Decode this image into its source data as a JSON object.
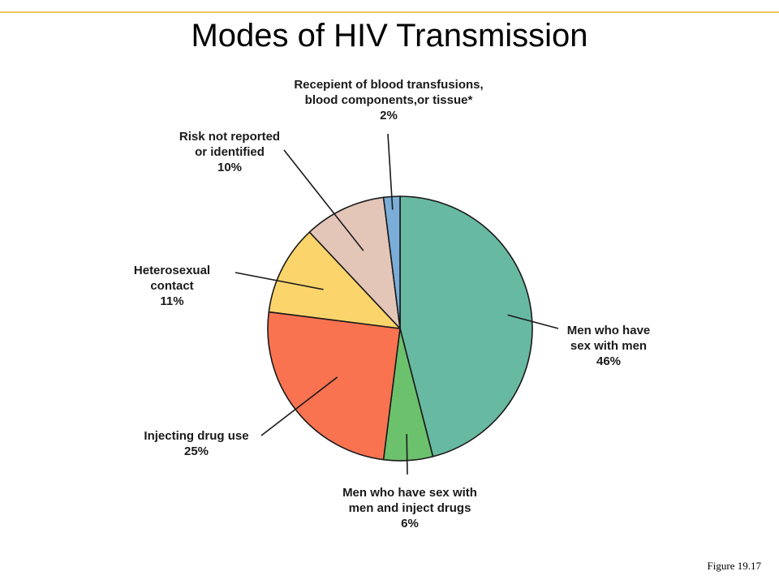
{
  "page": {
    "title": "Modes of HIV Transmission",
    "figure_caption": "Figure 19.17"
  },
  "chart_data": {
    "type": "pie",
    "title": "Modes of HIV Transmission",
    "unit": "%",
    "slices": [
      {
        "label_lines": [
          "Men who have",
          "sex with men"
        ],
        "percent_text": "46%",
        "value": 46,
        "color": "#68b9a2"
      },
      {
        "label_lines": [
          "Men who have sex with",
          "men and inject drugs"
        ],
        "percent_text": "6%",
        "value": 6,
        "color": "#6cc26c"
      },
      {
        "label_lines": [
          "Injecting drug use"
        ],
        "percent_text": "25%",
        "value": 25,
        "color": "#fa7350"
      },
      {
        "label_lines": [
          "Heterosexual",
          "contact"
        ],
        "percent_text": "11%",
        "value": 11,
        "color": "#fbd56c"
      },
      {
        "label_lines": [
          "Risk not reported",
          "or identified"
        ],
        "percent_text": "10%",
        "value": 10,
        "color": "#e4c6b8"
      },
      {
        "label_lines": [
          "Recepient of blood transfusions,",
          "blood components,or tissue*"
        ],
        "percent_text": "2%",
        "value": 2,
        "color": "#7aaed8"
      }
    ]
  }
}
